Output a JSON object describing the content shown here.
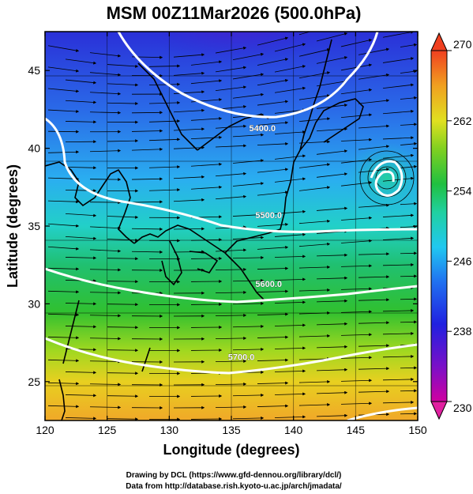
{
  "title": "MSM 00Z11Mar2026 (500.0hPa)",
  "map": {
    "xlabel": "Longitude (degrees)",
    "ylabel": "Latitude  (degrees)",
    "x_ticks": [
      "120",
      "125",
      "130",
      "135",
      "140",
      "145",
      "150"
    ],
    "y_ticks": [
      "45",
      "40",
      "35",
      "30",
      "25"
    ],
    "x_range": [
      120,
      150
    ],
    "y_range": [
      22.5,
      47.5
    ],
    "contour_labels": [
      {
        "text": "5400.0",
        "lon": 137.5,
        "lat": 41.3
      },
      {
        "text": "5500.0",
        "lon": 138.0,
        "lat": 35.7
      },
      {
        "text": "5600.0",
        "lon": 138.0,
        "lat": 31.3
      },
      {
        "text": "5700.0",
        "lon": 135.8,
        "lat": 26.6
      }
    ]
  },
  "colorbar": {
    "min": 230,
    "max": 270,
    "tick_labels": [
      "270",
      "262",
      "254",
      "246",
      "238",
      "230"
    ]
  },
  "credits": {
    "line1": "Drawing by DCL (https://www.gfd-dennou.org/library/dcl/)",
    "line2": "Data from http://database.rish.kyoto-u.ac.jp/arch/jmadata/"
  },
  "colors": {
    "cold": "#9b00b0",
    "warm": "#f0a020",
    "contour": "#ffffff",
    "streamline": "#000000"
  }
}
